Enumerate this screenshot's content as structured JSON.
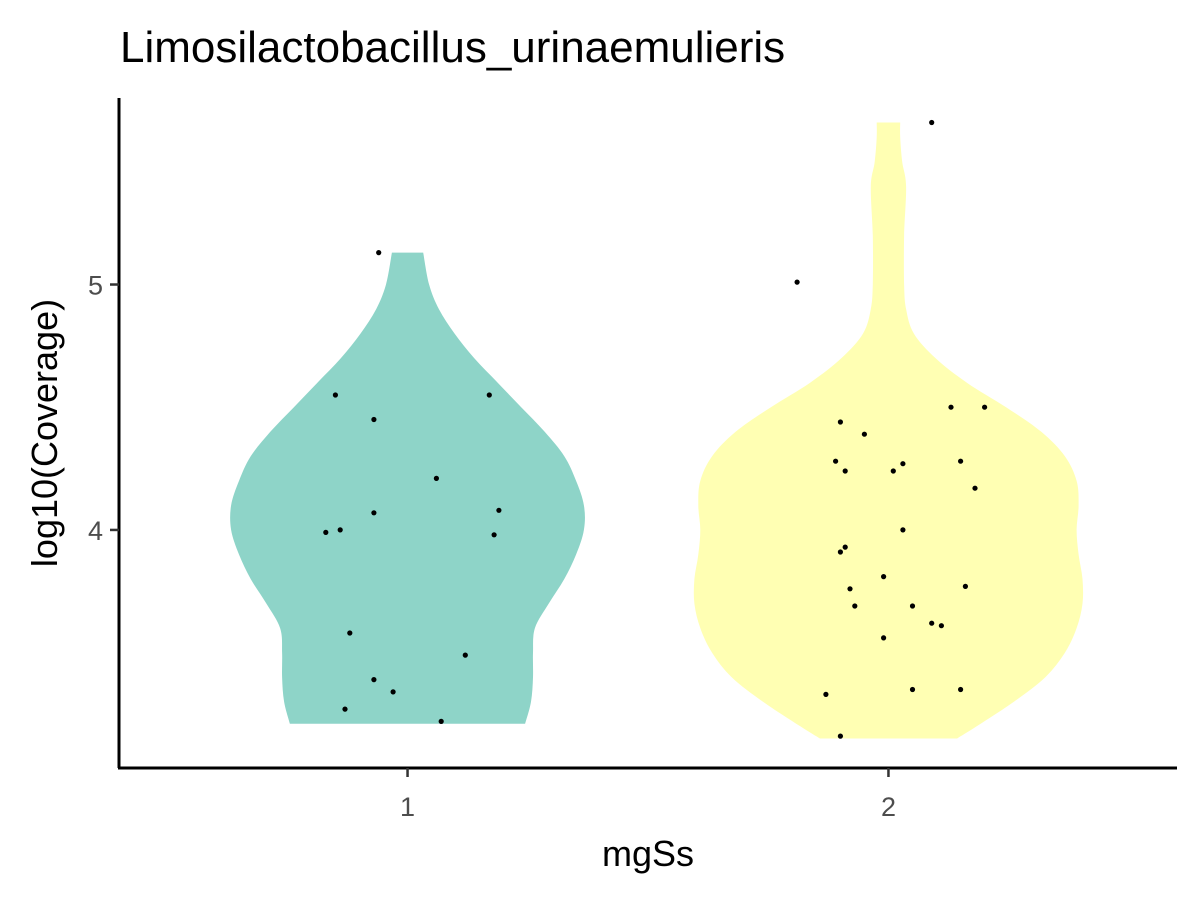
{
  "chart_data": {
    "type": "violin",
    "title": "Limosilactobacillus_urinaemulieris",
    "xlabel": "mgSs",
    "ylabel": "log10(Coverage)",
    "categories": [
      "1",
      "2"
    ],
    "ylim": [
      3.03,
      5.76
    ],
    "yticks": [
      4,
      5
    ],
    "grid": false,
    "legend": "none",
    "colors": {
      "1": "#8ED4C8",
      "2": "#FFFFB3",
      "points": "#000000"
    },
    "violins": [
      {
        "category": "1",
        "ymin": 3.21,
        "ymax": 5.13,
        "profile": [
          [
            3.21,
            0.6
          ],
          [
            3.3,
            0.63
          ],
          [
            3.4,
            0.64
          ],
          [
            3.5,
            0.64
          ],
          [
            3.6,
            0.65
          ],
          [
            3.7,
            0.72
          ],
          [
            3.8,
            0.8
          ],
          [
            3.9,
            0.86
          ],
          [
            4.0,
            0.9
          ],
          [
            4.1,
            0.9
          ],
          [
            4.2,
            0.86
          ],
          [
            4.3,
            0.8
          ],
          [
            4.4,
            0.7
          ],
          [
            4.5,
            0.58
          ],
          [
            4.6,
            0.46
          ],
          [
            4.7,
            0.34
          ],
          [
            4.8,
            0.24
          ],
          [
            4.9,
            0.16
          ],
          [
            5.0,
            0.11
          ],
          [
            5.13,
            0.08
          ]
        ],
        "points": [
          [
            0.83,
            3.99
          ],
          [
            0.86,
            4.0
          ],
          [
            0.88,
            3.58
          ],
          [
            0.85,
            4.55
          ],
          [
            0.93,
            4.45
          ],
          [
            0.93,
            4.07
          ],
          [
            0.93,
            3.39
          ],
          [
            0.87,
            3.27
          ],
          [
            0.97,
            3.34
          ],
          [
            1.07,
            3.22
          ],
          [
            1.06,
            4.21
          ],
          [
            1.12,
            3.49
          ],
          [
            1.17,
            4.55
          ],
          [
            1.18,
            3.98
          ],
          [
            1.19,
            4.08
          ],
          [
            0.94,
            5.13
          ]
        ]
      },
      {
        "category": "2",
        "ymin": 3.15,
        "ymax": 5.66,
        "profile": [
          [
            3.15,
            0.35
          ],
          [
            3.2,
            0.45
          ],
          [
            3.3,
            0.64
          ],
          [
            3.4,
            0.8
          ],
          [
            3.5,
            0.9
          ],
          [
            3.6,
            0.96
          ],
          [
            3.7,
            0.99
          ],
          [
            3.8,
            0.99
          ],
          [
            3.9,
            0.97
          ],
          [
            4.0,
            0.96
          ],
          [
            4.1,
            0.97
          ],
          [
            4.2,
            0.96
          ],
          [
            4.3,
            0.9
          ],
          [
            4.4,
            0.78
          ],
          [
            4.5,
            0.6
          ],
          [
            4.6,
            0.4
          ],
          [
            4.7,
            0.24
          ],
          [
            4.8,
            0.13
          ],
          [
            4.9,
            0.09
          ],
          [
            5.0,
            0.08
          ],
          [
            5.2,
            0.08
          ],
          [
            5.4,
            0.09
          ],
          [
            5.5,
            0.07
          ],
          [
            5.6,
            0.06
          ],
          [
            5.66,
            0.06
          ]
        ]
      }
    ]
  },
  "points_2": [
    [
      1.81,
      5.01
    ],
    [
      2.09,
      5.66
    ],
    [
      1.9,
      4.44
    ],
    [
      1.95,
      4.39
    ],
    [
      1.89,
      4.28
    ],
    [
      1.91,
      4.24
    ],
    [
      2.01,
      4.24
    ],
    [
      2.03,
      4.27
    ],
    [
      2.13,
      4.5
    ],
    [
      2.2,
      4.5
    ],
    [
      2.15,
      4.28
    ],
    [
      2.18,
      4.17
    ],
    [
      2.03,
      4.0
    ],
    [
      1.9,
      3.91
    ],
    [
      1.91,
      3.93
    ],
    [
      1.92,
      3.76
    ],
    [
      1.99,
      3.81
    ],
    [
      2.16,
      3.77
    ],
    [
      1.93,
      3.69
    ],
    [
      2.05,
      3.69
    ],
    [
      2.09,
      3.62
    ],
    [
      2.11,
      3.61
    ],
    [
      1.99,
      3.56
    ],
    [
      2.05,
      3.35
    ],
    [
      2.15,
      3.35
    ],
    [
      1.87,
      3.33
    ],
    [
      1.9,
      3.16
    ]
  ]
}
